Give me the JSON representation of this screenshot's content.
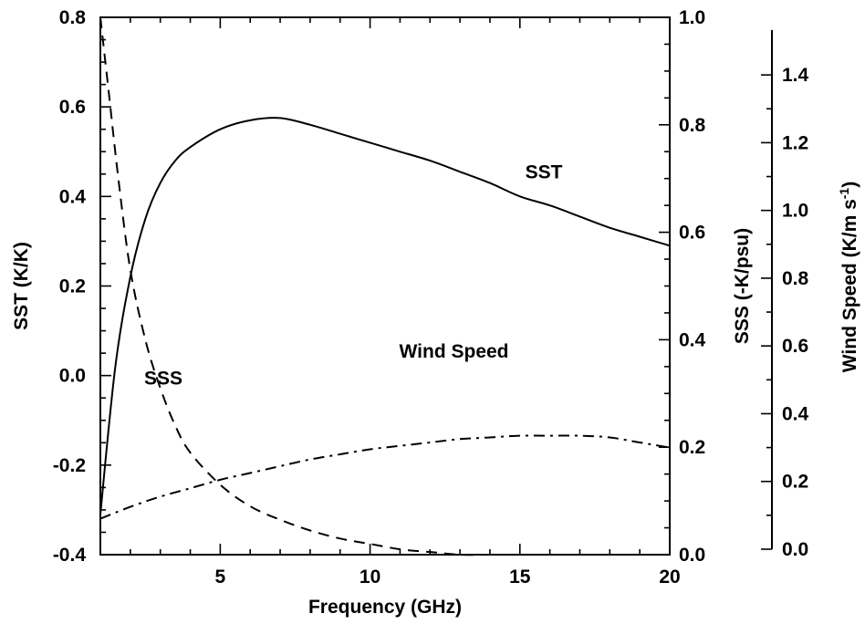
{
  "chart_data": {
    "type": "line",
    "xlabel": "Frequency (GHz)",
    "xlim": [
      1,
      20
    ],
    "x_ticks": [
      5,
      10,
      15,
      20
    ],
    "axes": {
      "left": {
        "label": "SST (K/K)",
        "ylim": [
          -0.4,
          0.8
        ],
        "ticks": [
          "-0.4",
          "-0.2",
          "0.0",
          "0.2",
          "0.4",
          "0.6",
          "0.8"
        ]
      },
      "right": {
        "label": "SSS (-K/psu)",
        "ylim": [
          0.0,
          1.0
        ],
        "ticks": [
          "0.0",
          "0.2",
          "0.4",
          "0.6",
          "0.8",
          "1.0"
        ]
      },
      "wind": {
        "label": "Wind Speed (K/m s",
        "label_sup": "-1",
        "label_end": ")",
        "ylim": [
          0.0,
          1.5
        ],
        "ticks": [
          "0.0",
          "0.2",
          "0.4",
          "0.6",
          "0.8",
          "1.0",
          "1.2",
          "1.4"
        ]
      }
    },
    "series": [
      {
        "name": "SST",
        "axis": "left",
        "style": "solid",
        "x": [
          1.0,
          1.5,
          2.0,
          2.5,
          3.0,
          3.5,
          4.0,
          5.0,
          6.0,
          7.0,
          8.0,
          9.0,
          10.0,
          11.0,
          12.0,
          13.0,
          14.0,
          15.0,
          16.0,
          17.0,
          18.0,
          19.0,
          20.0
        ],
        "y": [
          -0.31,
          0.02,
          0.22,
          0.35,
          0.43,
          0.48,
          0.51,
          0.55,
          0.57,
          0.575,
          0.56,
          0.54,
          0.52,
          0.5,
          0.48,
          0.455,
          0.43,
          0.4,
          0.38,
          0.355,
          0.33,
          0.31,
          0.29
        ]
      },
      {
        "name": "SSS",
        "axis": "right",
        "style": "dashed",
        "x": [
          1.0,
          1.3,
          1.6,
          2.0,
          2.5,
          3.0,
          3.5,
          4.0,
          5.0,
          6.0,
          7.0,
          8.0,
          9.0,
          10.0,
          11.0,
          12.0,
          13.0,
          14.0,
          15.0
        ],
        "y": [
          1.0,
          0.85,
          0.7,
          0.53,
          0.4,
          0.31,
          0.24,
          0.19,
          0.13,
          0.09,
          0.065,
          0.045,
          0.03,
          0.02,
          0.01,
          0.005,
          0.0,
          0.0,
          0.0
        ]
      },
      {
        "name": "Wind Speed",
        "axis": "wind",
        "style": "dashdot",
        "x": [
          1.0,
          2.0,
          3.0,
          4.0,
          5.0,
          6.0,
          7.0,
          8.0,
          9.0,
          10.0,
          11.0,
          12.0,
          13.0,
          14.0,
          15.0,
          16.0,
          17.0,
          18.0,
          19.0,
          20.0
        ],
        "y": [
          0.09,
          0.125,
          0.155,
          0.18,
          0.205,
          0.225,
          0.245,
          0.265,
          0.28,
          0.295,
          0.305,
          0.315,
          0.325,
          0.33,
          0.335,
          0.335,
          0.335,
          0.33,
          0.315,
          0.3
        ]
      }
    ],
    "annotations": [
      {
        "text": "SST",
        "x": 15.8,
        "y_axis": "left",
        "y": 0.44
      },
      {
        "text": "SSS",
        "x": 3.1,
        "y_axis": "left",
        "y": -0.02
      },
      {
        "text": "Wind Speed",
        "x": 12.8,
        "y_axis": "left",
        "y": 0.04
      }
    ],
    "grid": false
  }
}
